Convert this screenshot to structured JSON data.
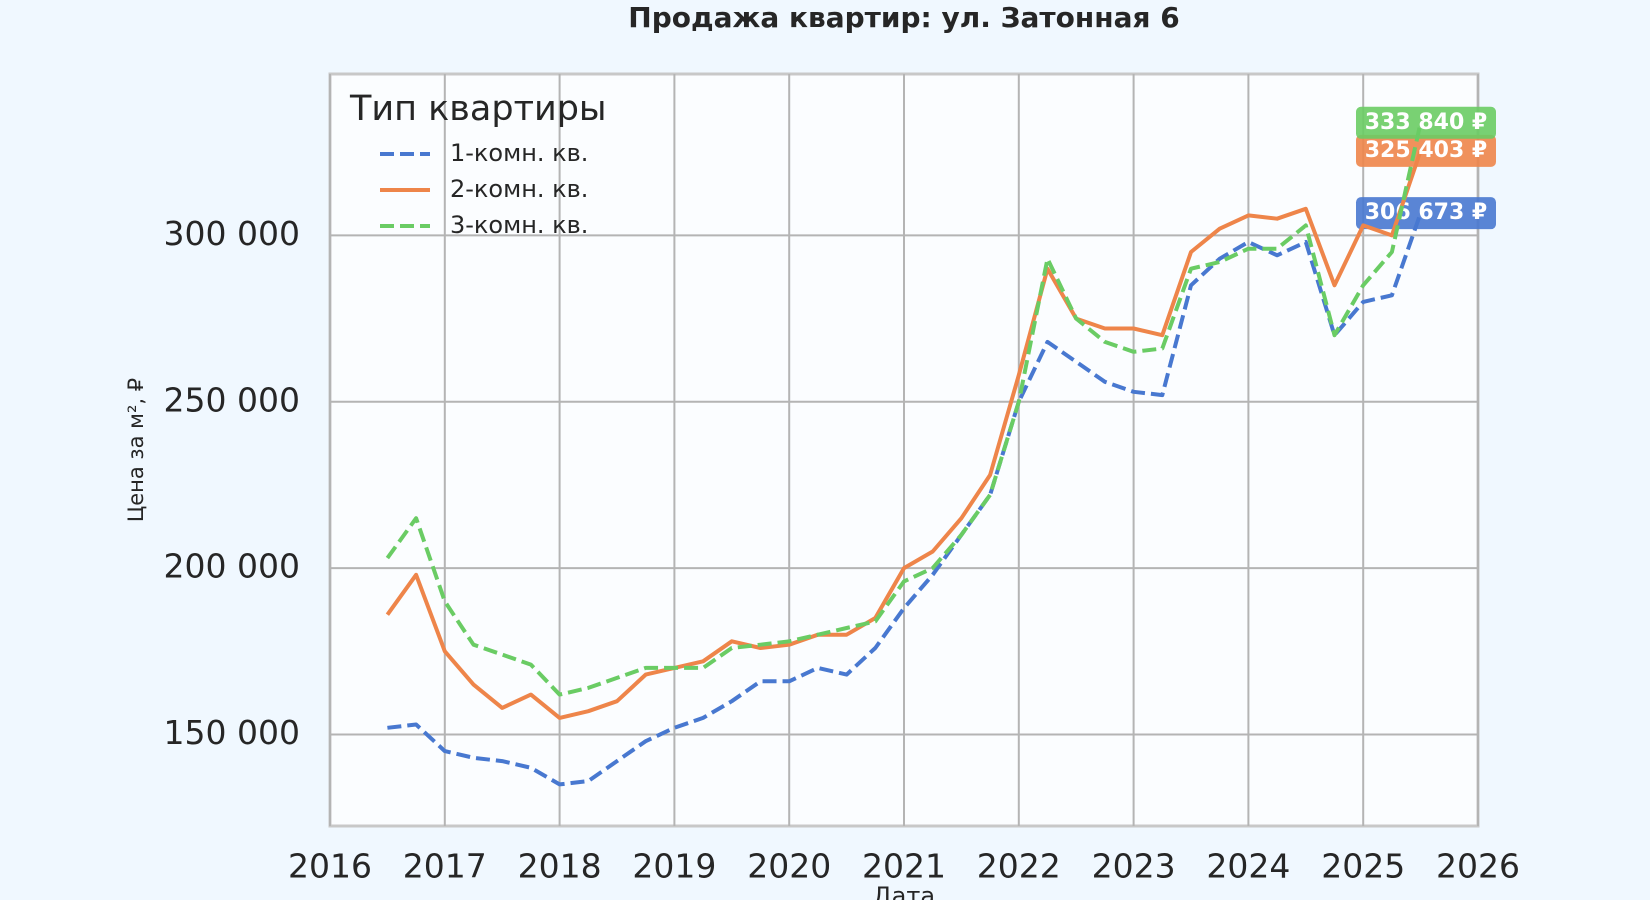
{
  "chart_data": {
    "type": "line",
    "title": "Продажа квартир: ул. Затонная 6",
    "x_label": "Дата",
    "y_label": "Цена за м², ₽",
    "legend_title": "Тип квартиры",
    "legend_position": "upper left",
    "grid": true,
    "x": [
      2016.5,
      2016.75,
      2017,
      2017.25,
      2017.5,
      2017.75,
      2018,
      2018.25,
      2018.5,
      2018.75,
      2019,
      2019.25,
      2019.5,
      2019.75,
      2020,
      2020.25,
      2020.5,
      2020.75,
      2021,
      2021.25,
      2021.5,
      2021.75,
      2022,
      2022.25,
      2022.5,
      2022.75,
      2023,
      2023.25,
      2023.5,
      2023.75,
      2024,
      2024.25,
      2024.5,
      2024.75,
      2025,
      2025.25,
      2025.5
    ],
    "xlim": [
      2016,
      2026
    ],
    "xticks": [
      2016,
      2017,
      2018,
      2019,
      2020,
      2021,
      2022,
      2023,
      2024,
      2025,
      2026
    ],
    "ylim": [
      122500,
      348500
    ],
    "yticks": [
      {
        "value": 150000,
        "label": "150 000"
      },
      {
        "value": 200000,
        "label": "200 000"
      },
      {
        "value": 250000,
        "label": "250 000"
      },
      {
        "value": 300000,
        "label": "300 000"
      }
    ],
    "series": [
      {
        "name": "1-комн. кв.",
        "color": "#4878d0",
        "dash": "dashed",
        "values": [
          152000,
          153000,
          145000,
          143000,
          142000,
          140000,
          135000,
          136000,
          142000,
          148000,
          152000,
          155000,
          160000,
          166000,
          166000,
          170000,
          168000,
          176000,
          188000,
          198000,
          210000,
          222000,
          250000,
          268000,
          262000,
          256000,
          253000,
          252000,
          285000,
          293000,
          298000,
          294000,
          298000,
          270000,
          280000,
          282000,
          306673
        ],
        "value_labels": [
          null,
          null,
          null,
          null,
          null,
          null,
          null,
          null,
          null,
          null,
          null,
          null,
          null,
          null,
          null,
          null,
          null,
          null,
          null,
          null,
          null,
          null,
          null,
          null,
          null,
          null,
          null,
          null,
          null,
          null,
          null,
          null,
          null,
          null,
          null,
          null,
          "306 673 ₽"
        ]
      },
      {
        "name": "2-комн. кв.",
        "color": "#ee854a",
        "dash": "solid",
        "values": [
          186000,
          198000,
          175000,
          165000,
          158000,
          162000,
          155000,
          157000,
          160000,
          168000,
          170000,
          172000,
          178000,
          176000,
          177000,
          180000,
          180000,
          185000,
          200000,
          205000,
          215000,
          228000,
          258000,
          290000,
          275000,
          272000,
          272000,
          270000,
          295000,
          302000,
          306000,
          305000,
          308000,
          285000,
          303000,
          300000,
          325403
        ],
        "value_labels": [
          null,
          null,
          null,
          null,
          null,
          null,
          null,
          null,
          null,
          null,
          null,
          null,
          null,
          null,
          null,
          null,
          null,
          null,
          null,
          null,
          null,
          null,
          null,
          null,
          null,
          null,
          null,
          null,
          null,
          null,
          null,
          null,
          null,
          null,
          null,
          null,
          "325 403 ₽"
        ]
      },
      {
        "name": "3-комн. кв.",
        "color": "#6acc64",
        "dash": "dashed",
        "values": [
          203000,
          215000,
          190000,
          177000,
          174000,
          171000,
          162000,
          164000,
          167000,
          170000,
          170000,
          170000,
          176000,
          177000,
          178000,
          180000,
          182000,
          184000,
          196000,
          200000,
          210000,
          222000,
          250000,
          293000,
          275000,
          268000,
          265000,
          266000,
          290000,
          292000,
          296000,
          296000,
          303000,
          270000,
          285000,
          295000,
          333840
        ],
        "value_labels": [
          null,
          null,
          null,
          null,
          null,
          null,
          null,
          null,
          null,
          null,
          null,
          null,
          null,
          null,
          null,
          null,
          null,
          null,
          null,
          null,
          null,
          null,
          null,
          null,
          null,
          null,
          null,
          null,
          null,
          null,
          null,
          null,
          null,
          null,
          null,
          null,
          "333 840 ₽"
        ]
      }
    ]
  }
}
